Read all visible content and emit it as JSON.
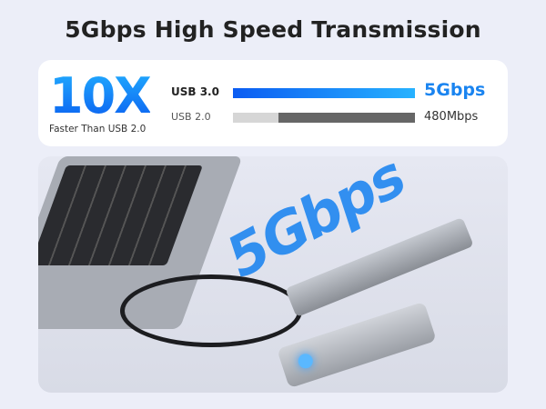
{
  "title": "5Gbps High Speed Transmission",
  "comparison": {
    "multiplier": "10X",
    "multiplier_caption": "Faster Than USB 2.0",
    "usb3": {
      "label": "USB 3.0",
      "speed": "5Gbps",
      "fill_percent": 100,
      "color": "#1a84f0"
    },
    "usb2": {
      "label": "USB 2.0",
      "speed": "480Mbps",
      "fill_percent": 75,
      "color": "#666666"
    }
  },
  "photo": {
    "overlay_text": "5Gbps"
  }
}
